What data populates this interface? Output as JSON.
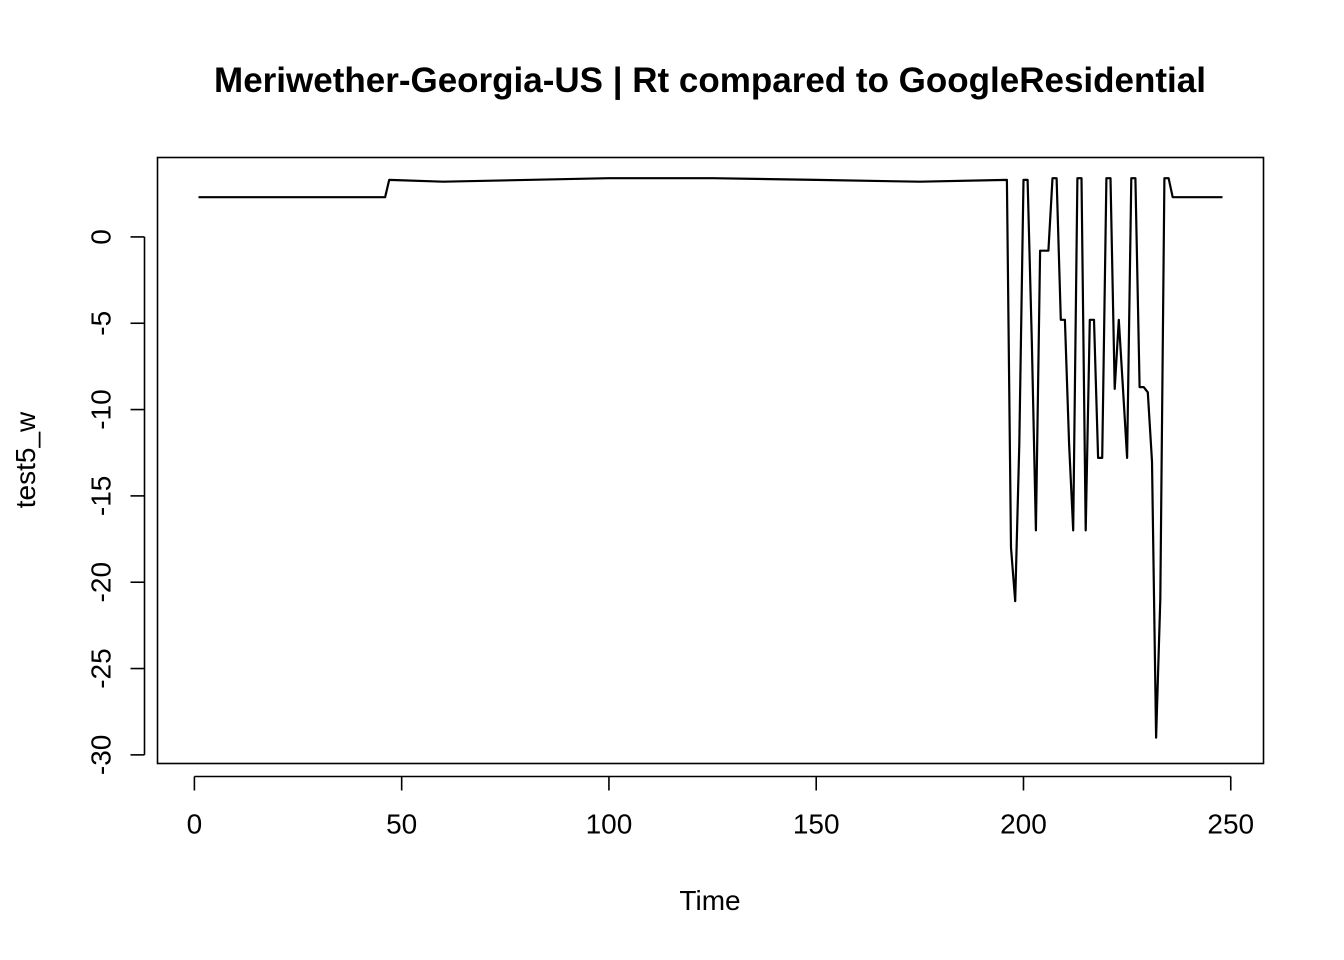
{
  "chart_data": {
    "type": "line",
    "title": "Meriwether-Georgia-US | Rt compared to GoogleResidential",
    "xlabel": "Time",
    "ylabel": "test5_w",
    "xlim": [
      -8.9,
      257.9
    ],
    "ylim": [
      -30.5,
      4.6
    ],
    "xticks": [
      0,
      50,
      100,
      150,
      200,
      250
    ],
    "yticks": [
      0,
      -5,
      -10,
      -15,
      -20,
      -25,
      -30
    ],
    "grid": false,
    "line_color": "#000000",
    "series": [
      {
        "x": [
          1,
          46,
          47,
          60,
          100,
          125,
          150,
          175,
          196,
          197,
          198,
          199,
          200,
          201,
          202,
          203,
          204,
          205,
          206,
          207,
          208,
          209,
          210,
          211,
          212,
          213,
          214,
          215,
          216,
          217,
          218,
          219,
          220,
          221,
          222,
          223,
          224,
          225,
          226,
          227,
          228,
          229,
          230,
          231,
          232,
          233,
          234,
          235,
          236,
          237,
          248
        ],
        "y": [
          2.3,
          2.3,
          3.3,
          3.2,
          3.4,
          3.4,
          3.3,
          3.2,
          3.3,
          -18.0,
          -21.1,
          -12.0,
          3.3,
          3.3,
          -6.0,
          -17.0,
          -0.8,
          -0.8,
          -0.8,
          3.4,
          3.4,
          -4.8,
          -4.8,
          -12.0,
          -17.0,
          3.4,
          3.4,
          -17.0,
          -4.8,
          -4.8,
          -12.8,
          -12.8,
          3.4,
          3.4,
          -8.8,
          -4.8,
          -8.8,
          -12.8,
          3.4,
          3.4,
          -8.7,
          -8.7,
          -9.0,
          -13.0,
          -29.0,
          -21.0,
          3.4,
          3.4,
          2.3,
          2.3,
          2.3
        ]
      }
    ]
  }
}
